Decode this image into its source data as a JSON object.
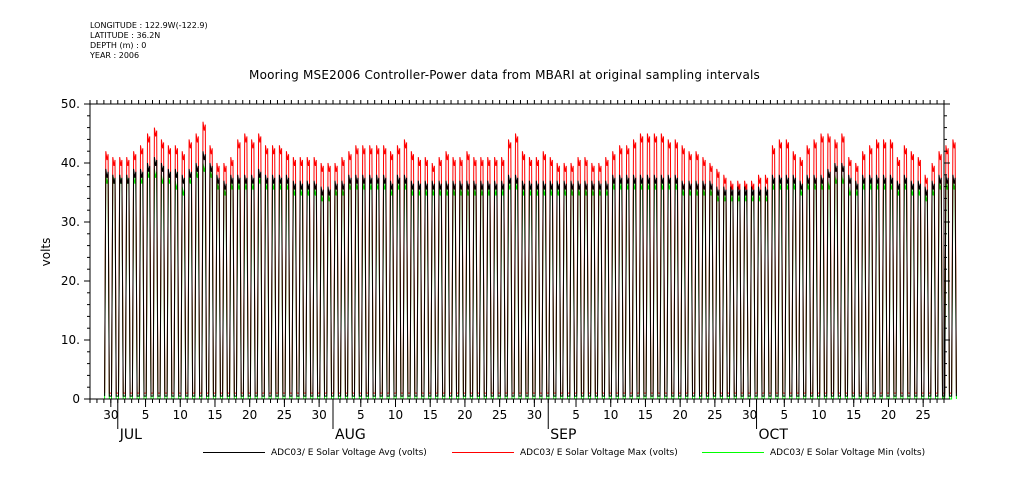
{
  "meta": {
    "longitude": "LONGITUDE : 122.9W(-122.9)",
    "latitude": "LATITUDE : 36.2N",
    "depth": "DEPTH (m) : 0",
    "year": "YEAR : 2006"
  },
  "colors": {
    "avg": "#000000",
    "max": "#ff0000",
    "min": "#00ff00"
  },
  "chart_data": {
    "type": "line",
    "title": "Mooring MSE2006 Controller-Power data from MBARI at original sampling intervals",
    "xlabel": "",
    "ylabel": "volts",
    "ylim": [
      0,
      50
    ],
    "yticks": [
      "0",
      "10.",
      "20.",
      "30.",
      "40.",
      "50."
    ],
    "xlim": [
      "2006-06-27",
      "2006-10-28"
    ],
    "xtick_labels": [
      "30",
      "5",
      "10",
      "15",
      "20",
      "25",
      "30",
      "5",
      "10",
      "15",
      "20",
      "25",
      "30",
      "5",
      "10",
      "15",
      "20",
      "25",
      "30",
      "5",
      "10",
      "15",
      "20",
      "25"
    ],
    "xtick_dates": [
      "2006-06-30",
      "2006-07-05",
      "2006-07-10",
      "2006-07-15",
      "2006-07-20",
      "2006-07-25",
      "2006-07-30",
      "2006-08-05",
      "2006-08-10",
      "2006-08-15",
      "2006-08-20",
      "2006-08-25",
      "2006-08-30",
      "2006-09-05",
      "2006-09-10",
      "2006-09-15",
      "2006-09-20",
      "2006-09-25",
      "2006-09-30",
      "2006-10-05",
      "2006-10-10",
      "2006-10-15",
      "2006-10-20",
      "2006-10-25"
    ],
    "month_labels": [
      "JUL",
      "AUG",
      "SEP",
      "OCT"
    ],
    "month_dates": [
      "2006-07-01",
      "2006-08-01",
      "2006-09-01",
      "2006-10-01"
    ],
    "series": [
      {
        "name": "ADC03/ E Solar Voltage Avg (volts)",
        "daily_high": [
          39,
          38,
          38,
          38,
          39,
          39,
          40,
          41,
          40,
          39,
          39,
          38,
          39,
          40,
          42,
          40,
          38,
          37,
          38,
          38,
          38,
          38,
          39,
          38,
          38,
          38,
          38,
          37,
          37,
          37,
          37,
          36,
          36,
          37,
          37,
          38,
          38,
          38,
          38,
          38,
          38,
          37,
          38,
          38,
          37,
          37,
          37,
          37,
          37,
          37,
          37,
          37,
          37,
          37,
          37,
          37,
          37,
          37,
          38,
          38,
          37,
          37,
          37,
          37,
          37,
          37,
          37,
          37,
          37,
          37,
          37,
          37,
          37,
          38,
          38,
          38,
          38,
          38,
          38,
          38,
          38,
          38,
          38,
          37,
          37,
          37,
          37,
          37,
          36,
          36,
          36,
          36,
          36,
          36,
          36,
          36,
          38,
          38,
          38,
          38,
          37,
          38,
          38,
          38,
          39,
          40,
          40,
          38,
          37,
          38,
          38,
          38,
          38,
          38,
          37,
          38,
          37,
          37,
          36,
          37,
          38,
          38,
          38
        ],
        "daily_low": [
          0.5,
          0.5,
          0.5,
          0.5,
          0.5,
          0.5,
          0.5,
          0.5,
          0.5,
          0.5,
          0.5,
          0.5,
          0.5,
          0.5,
          0.5,
          0.5,
          0.5,
          0.5,
          0.5,
          0.5,
          0.5,
          0.5,
          0.5,
          0.5,
          0.5,
          0.5,
          0.5,
          0.5,
          0.5,
          0.5,
          0.5,
          0.5,
          0.5,
          0.5,
          0.5,
          0.5,
          0.5,
          0.5,
          0.5,
          0.5,
          0.5,
          0.5,
          0.5,
          0.5,
          0.5,
          0.5,
          0.5,
          0.5,
          0.5,
          0.5,
          0.5,
          0.5,
          0.5,
          0.5,
          0.5,
          0.5,
          0.5,
          0.5,
          0.5,
          0.5,
          0.5,
          0.5,
          0.5,
          0.5,
          0.5,
          0.5,
          0.5,
          0.5,
          0.5,
          0.5,
          0.5,
          0.5,
          0.5,
          0.5,
          0.5,
          0.5,
          0.5,
          0.5,
          0.5,
          0.5,
          0.5,
          0.5,
          0.5,
          0.5,
          0.5,
          0.5,
          0.5,
          0.5,
          0.5,
          0.5,
          0.5,
          0.5,
          0.5,
          0.5,
          0.5,
          0.5,
          0.5,
          0.5,
          0.5,
          0.5,
          0.5,
          0.5,
          0.5,
          0.5,
          0.5,
          0.5,
          0.5,
          0.5,
          0.5,
          0.5,
          0.5,
          0.5,
          0.5,
          0.5,
          0.5,
          0.5,
          0.5,
          0.5,
          0.5,
          0.5,
          0.5,
          0.5,
          0.5
        ]
      },
      {
        "name": "ADC03/ E Solar Voltage Max (volts)",
        "daily_high": [
          42,
          41,
          41,
          41,
          42,
          43,
          45,
          46,
          44,
          43,
          43,
          42,
          44,
          45,
          47,
          43,
          40,
          40,
          41,
          44,
          45,
          44,
          45,
          43,
          43,
          43,
          42,
          41,
          41,
          41,
          41,
          40,
          40,
          40,
          41,
          42,
          43,
          43,
          43,
          43,
          43,
          42,
          43,
          44,
          42,
          41,
          41,
          40,
          41,
          42,
          41,
          41,
          42,
          41,
          41,
          41,
          41,
          41,
          44,
          45,
          42,
          41,
          41,
          42,
          41,
          40,
          40,
          40,
          41,
          41,
          40,
          40,
          41,
          42,
          43,
          43,
          44,
          45,
          45,
          45,
          45,
          44,
          44,
          43,
          42,
          42,
          41,
          40,
          39,
          38,
          37,
          37,
          37,
          37,
          38,
          38,
          43,
          44,
          44,
          42,
          41,
          43,
          44,
          45,
          45,
          44,
          45,
          41,
          40,
          42,
          43,
          44,
          44,
          44,
          41,
          43,
          42,
          41,
          38,
          40,
          42,
          43,
          44
        ],
        "daily_low": [
          1,
          1,
          1,
          1,
          1,
          1,
          1,
          1,
          1,
          1,
          1,
          1,
          1,
          1,
          1,
          1,
          1,
          1,
          1,
          1,
          1,
          1,
          1,
          1,
          1,
          1,
          1,
          1,
          1,
          1,
          1,
          1,
          1,
          1,
          1,
          1,
          1,
          1,
          1,
          1,
          1,
          1,
          1,
          1,
          1,
          1,
          1,
          1,
          1,
          1,
          1,
          1,
          1,
          1,
          1,
          1,
          1,
          1,
          1,
          1,
          1,
          1,
          1,
          1,
          1,
          1,
          1,
          1,
          1,
          1,
          1,
          1,
          1,
          1,
          1,
          1,
          1,
          1,
          1,
          1,
          1,
          1,
          1,
          1,
          1,
          1,
          1,
          1,
          1,
          1,
          1,
          1,
          1,
          1,
          1,
          1,
          1,
          1,
          1,
          1,
          1,
          1,
          1,
          1,
          1,
          1,
          1,
          1,
          1,
          1,
          1,
          1,
          1,
          1,
          1,
          1,
          1,
          1,
          1,
          1,
          1,
          1,
          1
        ]
      },
      {
        "name": "ADC03/ E Solar Voltage Min (volts)",
        "daily_high": [
          38,
          38,
          38,
          38,
          38,
          38,
          39,
          39,
          38,
          38,
          37,
          36,
          38,
          39,
          40,
          39,
          37,
          36,
          37,
          37,
          37,
          37,
          38,
          37,
          37,
          37,
          37,
          36,
          36,
          36,
          36,
          35,
          35,
          36,
          36,
          37,
          37,
          37,
          37,
          37,
          37,
          36,
          37,
          37,
          36,
          36,
          36,
          36,
          36,
          36,
          36,
          36,
          36,
          36,
          36,
          36,
          36,
          36,
          37,
          37,
          36,
          36,
          36,
          36,
          36,
          36,
          36,
          36,
          36,
          36,
          36,
          36,
          36,
          37,
          37,
          37,
          37,
          37,
          37,
          37,
          37,
          37,
          37,
          36,
          36,
          36,
          36,
          36,
          35,
          35,
          35,
          35,
          35,
          35,
          35,
          35,
          37,
          37,
          37,
          37,
          36,
          37,
          37,
          37,
          37,
          38,
          38,
          36,
          36,
          37,
          37,
          37,
          37,
          37,
          36,
          37,
          36,
          36,
          35,
          36,
          37,
          37,
          37
        ],
        "daily_low": [
          0,
          0,
          0,
          0,
          0,
          0,
          0,
          0,
          0,
          0,
          0,
          0,
          0,
          0,
          0,
          0,
          0,
          0,
          0,
          0,
          0,
          0,
          0,
          0,
          0,
          0,
          0,
          0,
          0,
          0,
          0,
          0,
          0,
          0,
          0,
          0,
          0,
          0,
          0,
          0,
          0,
          0,
          0,
          0,
          0,
          0,
          0,
          0,
          0,
          0,
          0,
          0,
          0,
          0,
          0,
          0,
          0,
          0,
          0,
          0,
          0,
          0,
          0,
          0,
          0,
          0,
          0,
          0,
          0,
          0,
          0,
          0,
          0,
          0,
          0,
          0,
          0,
          0,
          0,
          0,
          0,
          0,
          0,
          0,
          0,
          0,
          0,
          0,
          0,
          0,
          0,
          0,
          0,
          0,
          0,
          0,
          0,
          0,
          0,
          0,
          0,
          0,
          0,
          0,
          0,
          0,
          0,
          0,
          0,
          0,
          0,
          0,
          0,
          0,
          0,
          0,
          0,
          0,
          0,
          0,
          0,
          0,
          0
        ]
      }
    ],
    "grid": false,
    "legend": "bottom"
  }
}
